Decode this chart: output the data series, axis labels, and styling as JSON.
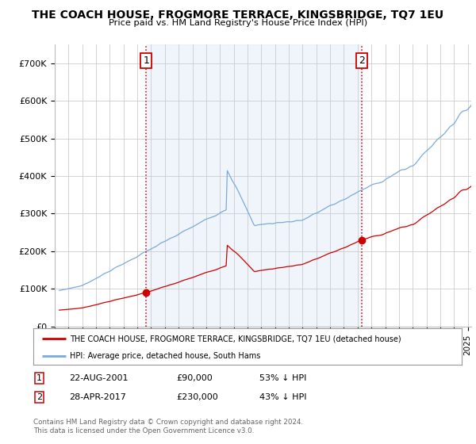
{
  "title": "THE COACH HOUSE, FROGMORE TERRACE, KINGSBRIDGE, TQ7 1EU",
  "subtitle": "Price paid vs. HM Land Registry's House Price Index (HPI)",
  "ylim": [
    0,
    750000
  ],
  "yticks": [
    0,
    100000,
    200000,
    300000,
    400000,
    500000,
    600000,
    700000
  ],
  "ytick_labels": [
    "£0",
    "£100K",
    "£200K",
    "£300K",
    "£400K",
    "£500K",
    "£600K",
    "£700K"
  ],
  "xlim_start": 1995.33,
  "xlim_end": 2025.25,
  "line1_color": "#cc0000",
  "line2_color": "#7aaadd",
  "fill_color": "#ddeeff",
  "sale1_date": 2001.64,
  "sale1_price": 90000,
  "sale2_date": 2017.32,
  "sale2_price": 230000,
  "vline_color": "#cc0000",
  "legend_line1": "THE COACH HOUSE, FROGMORE TERRACE, KINGSBRIDGE, TQ7 1EU (detached house)",
  "legend_line2": "HPI: Average price, detached house, South Hams",
  "background_color": "#ffffff",
  "grid_color": "#cccccc",
  "footnote": "Contains HM Land Registry data © Crown copyright and database right 2024.\nThis data is licensed under the Open Government Licence v3.0."
}
